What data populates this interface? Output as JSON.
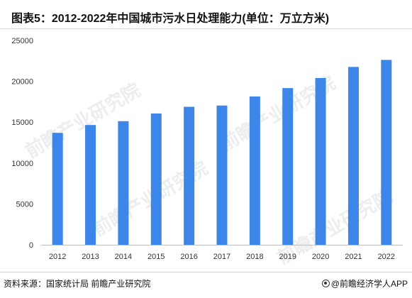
{
  "title": "图表5：2012-2022年中国城市污水日处理能力(单位：万立方米)",
  "footer": {
    "source": "资料来源：国家统计局 前瞻产业研究院",
    "brand": "@前瞻经济学人APP"
  },
  "watermark": "前瞻产业研究院",
  "colors": {
    "bar": "#3b86e8",
    "axis": "#bfbfbf",
    "text": "#333333"
  },
  "chart_data": {
    "type": "bar",
    "title": "图表5：2012-2022年中国城市污水日处理能力(单位：万立方米)",
    "categories": [
      "2012",
      "2013",
      "2014",
      "2015",
      "2016",
      "2017",
      "2018",
      "2019",
      "2020",
      "2021",
      "2022"
    ],
    "series": [
      {
        "values": [
          13693,
          14653,
          15124,
          16065,
          16881,
          17037,
          18145,
          19171,
          20405,
          21760,
          22619
        ]
      }
    ],
    "yticks": [
      0,
      5000,
      10000,
      15000,
      20000,
      25000
    ],
    "ylim": [
      0,
      25000
    ],
    "grid": false,
    "legend": "none"
  }
}
